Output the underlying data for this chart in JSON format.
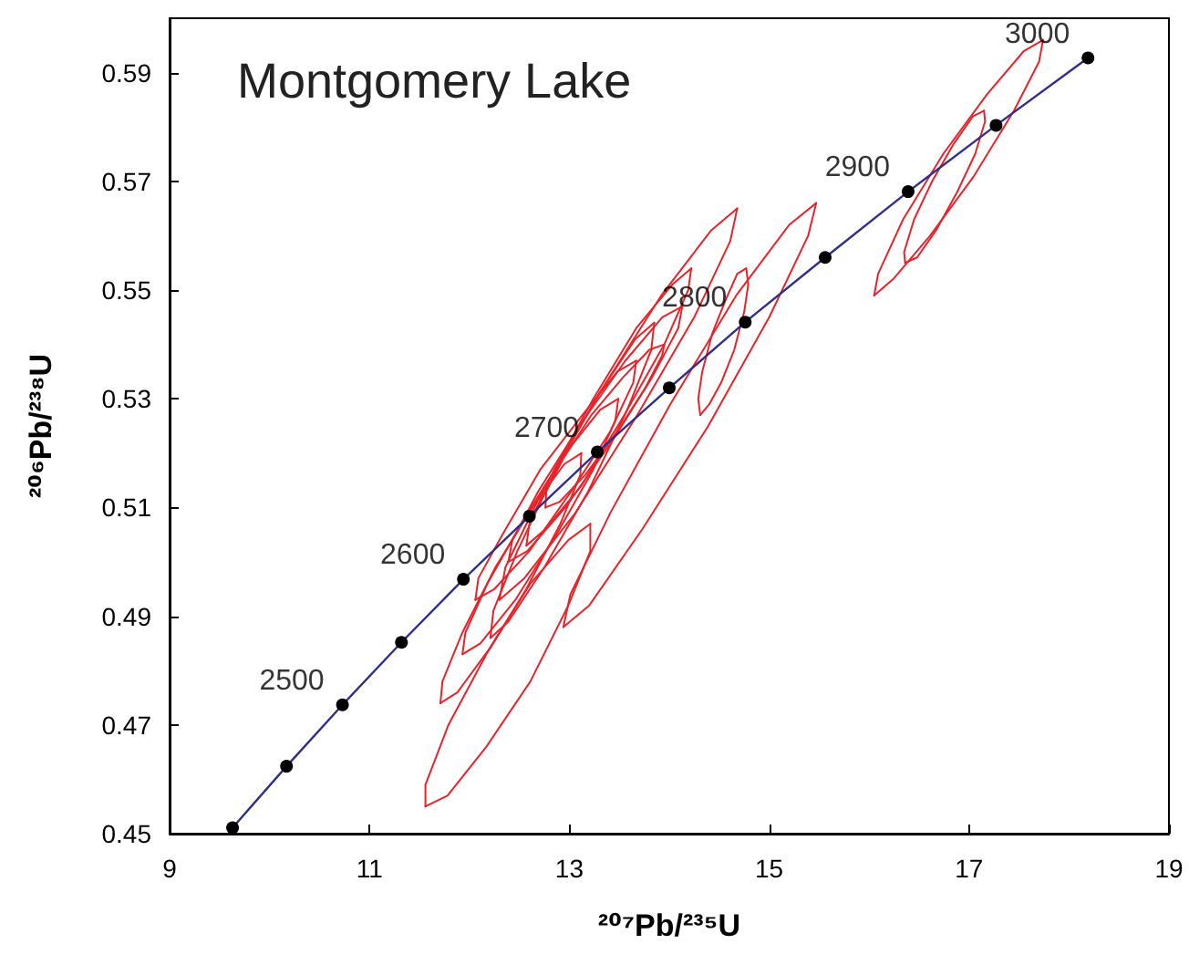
{
  "chart_data": {
    "type": "line",
    "title": "Montgomery Lake",
    "xlabel": "²⁰⁷Pb/²³⁵U",
    "ylabel": "²⁰⁶Pb/²³⁸U",
    "xlim": [
      9,
      19
    ],
    "xticks": [
      9,
      11,
      13,
      15,
      17,
      19
    ],
    "ylim": [
      0.45,
      0.6
    ],
    "yticks": [
      0.45,
      0.47,
      0.49,
      0.51,
      0.53,
      0.55,
      0.57,
      0.59
    ],
    "grid": false,
    "marker": "circle",
    "line_style": "solid",
    "series": [
      {
        "color": "#2e2e8c",
        "x": [
          9.63,
          10.17,
          10.73,
          11.32,
          11.94,
          12.6,
          13.28,
          14.0,
          14.76,
          15.56,
          16.39,
          17.27,
          18.19
        ],
        "values": [
          0.4511,
          0.4624,
          0.4737,
          0.4852,
          0.4968,
          0.5084,
          0.5202,
          0.532,
          0.5441,
          0.556,
          0.5681,
          0.5803,
          0.5927
        ]
      },
      {
        "color": "#e8232a",
        "marker": "none",
        "x": [
          11.56,
          11.78,
          12.17,
          12.61,
          12.99,
          13.21,
          13.21
        ],
        "values": [
          0.455,
          0.457,
          0.466,
          0.478,
          0.492,
          0.502,
          0.507
        ]
      },
      {
        "color": "#e8232a",
        "marker": "none",
        "x": [
          11.56,
          11.56,
          11.79,
          12.17,
          12.61,
          12.99,
          13.21
        ],
        "values": [
          0.455,
          0.459,
          0.47,
          0.483,
          0.496,
          0.504,
          0.507
        ]
      },
      {
        "color": "#e8232a",
        "marker": "none",
        "x": [
          11.71,
          11.88,
          12.2,
          12.57,
          12.91,
          13.11,
          13.12
        ],
        "values": [
          0.474,
          0.476,
          0.484,
          0.495,
          0.507,
          0.516,
          0.52
        ]
      },
      {
        "color": "#e8232a",
        "marker": "none",
        "x": [
          11.71,
          11.73,
          11.93,
          12.26,
          12.63,
          12.95,
          13.12
        ],
        "values": [
          0.474,
          0.478,
          0.487,
          0.499,
          0.51,
          0.518,
          0.52
        ]
      },
      {
        "color": "#e8232a",
        "marker": "none",
        "x": [
          12.3,
          12.55,
          13.06,
          13.68,
          14.25,
          14.61,
          14.68
        ],
        "values": [
          0.493,
          0.497,
          0.509,
          0.527,
          0.545,
          0.559,
          0.565
        ]
      },
      {
        "color": "#e8232a",
        "marker": "none",
        "x": [
          12.3,
          12.36,
          12.73,
          13.3,
          13.92,
          14.42,
          14.68
        ],
        "values": [
          0.493,
          0.499,
          0.513,
          0.531,
          0.549,
          0.561,
          0.565
        ]
      },
      {
        "color": "#e8232a",
        "marker": "none",
        "x": [
          12.94,
          13.2,
          13.73,
          14.39,
          15.0,
          15.39,
          15.47
        ],
        "values": [
          0.488,
          0.492,
          0.506,
          0.525,
          0.545,
          0.56,
          0.566
        ]
      },
      {
        "color": "#e8232a",
        "marker": "none",
        "x": [
          12.94,
          13.01,
          13.41,
          14.01,
          14.67,
          15.2,
          15.47
        ],
        "values": [
          0.488,
          0.494,
          0.509,
          0.529,
          0.549,
          0.562,
          0.566
        ]
      },
      {
        "color": "#e8232a",
        "marker": "none",
        "x": [
          14.31,
          14.4,
          14.52,
          14.65,
          14.75,
          14.79,
          14.77
        ],
        "values": [
          0.527,
          0.529,
          0.533,
          0.539,
          0.546,
          0.551,
          0.554
        ]
      },
      {
        "color": "#e8232a",
        "marker": "none",
        "x": [
          14.31,
          14.29,
          14.33,
          14.43,
          14.56,
          14.68,
          14.77
        ],
        "values": [
          0.527,
          0.53,
          0.535,
          0.542,
          0.548,
          0.553,
          0.554
        ]
      },
      {
        "color": "#e8232a",
        "marker": "none",
        "x": [
          16.05,
          16.24,
          16.61,
          17.05,
          17.45,
          17.7,
          17.74
        ],
        "values": [
          0.549,
          0.552,
          0.56,
          0.571,
          0.583,
          0.592,
          0.596
        ]
      },
      {
        "color": "#e8232a",
        "marker": "none",
        "x": [
          16.05,
          16.09,
          16.34,
          16.74,
          17.18,
          17.55,
          17.74
        ],
        "values": [
          0.549,
          0.553,
          0.563,
          0.575,
          0.586,
          0.594,
          0.596
        ]
      },
      {
        "color": "#e8232a",
        "marker": "none",
        "x": [
          16.36,
          16.48,
          16.67,
          16.88,
          17.06,
          17.16,
          17.15
        ],
        "values": [
          0.555,
          0.556,
          0.561,
          0.568,
          0.575,
          0.581,
          0.583
        ]
      },
      {
        "color": "#e8232a",
        "marker": "none",
        "x": [
          16.36,
          16.35,
          16.45,
          16.63,
          16.85,
          17.04,
          17.15
        ],
        "values": [
          0.555,
          0.557,
          0.563,
          0.57,
          0.577,
          0.582,
          0.583
        ]
      },
      {
        "color": "#e8232a",
        "marker": "none",
        "x": [
          12.06,
          12.25,
          12.6,
          13.02,
          13.41,
          13.64,
          13.67
        ],
        "values": [
          0.493,
          0.495,
          0.502,
          0.513,
          0.524,
          0.533,
          0.537
        ]
      },
      {
        "color": "#e8232a",
        "marker": "none",
        "x": [
          12.06,
          12.09,
          12.33,
          12.71,
          13.13,
          13.48,
          13.67
        ],
        "values": [
          0.493,
          0.497,
          0.505,
          0.517,
          0.527,
          0.535,
          0.537
        ]
      },
      {
        "color": "#e8232a",
        "marker": "none",
        "x": [
          12.21,
          12.39,
          12.75,
          13.19,
          13.58,
          13.82,
          13.85
        ],
        "values": [
          0.486,
          0.489,
          0.499,
          0.513,
          0.528,
          0.539,
          0.544
        ]
      },
      {
        "color": "#e8232a",
        "marker": "none",
        "x": [
          12.21,
          12.24,
          12.48,
          12.87,
          13.3,
          13.66,
          13.85
        ],
        "values": [
          0.486,
          0.491,
          0.502,
          0.517,
          0.531,
          0.541,
          0.544
        ]
      },
      {
        "color": "#e8232a",
        "marker": "none",
        "x": [
          12.39,
          12.58,
          12.96,
          13.42,
          13.83,
          14.09,
          14.13
        ],
        "values": [
          0.5,
          0.502,
          0.51,
          0.522,
          0.534,
          0.543,
          0.547
        ]
      },
      {
        "color": "#e8232a",
        "marker": "none",
        "x": [
          12.39,
          12.43,
          12.69,
          13.1,
          13.56,
          13.93,
          14.13
        ],
        "values": [
          0.5,
          0.504,
          0.513,
          0.525,
          0.537,
          0.545,
          0.547
        ]
      },
      {
        "color": "#e8232a",
        "marker": "none",
        "x": [
          11.93,
          12.11,
          12.46,
          12.87,
          13.24,
          13.46,
          13.49
        ],
        "values": [
          0.483,
          0.485,
          0.493,
          0.505,
          0.517,
          0.526,
          0.53
        ]
      },
      {
        "color": "#e8232a",
        "marker": "none",
        "x": [
          11.93,
          11.96,
          12.18,
          12.55,
          12.96,
          13.31,
          13.49
        ],
        "values": [
          0.483,
          0.487,
          0.496,
          0.508,
          0.52,
          0.528,
          0.53
        ]
      },
      {
        "color": "#e8232a",
        "marker": "none",
        "x": [
          12.57,
          12.76,
          13.12,
          13.55,
          13.95,
          14.19,
          14.22
        ],
        "values": [
          0.503,
          0.506,
          0.514,
          0.527,
          0.54,
          0.55,
          0.554
        ]
      },
      {
        "color": "#e8232a",
        "marker": "none",
        "x": [
          12.57,
          12.6,
          12.85,
          13.24,
          13.67,
          14.03,
          14.22
        ],
        "values": [
          0.503,
          0.507,
          0.517,
          0.53,
          0.543,
          0.551,
          0.554
        ]
      },
      {
        "color": "#e8232a",
        "marker": "none",
        "x": [
          12.76,
          12.9,
          13.16,
          13.48,
          13.76,
          13.93,
          13.95
        ],
        "values": [
          0.51,
          0.511,
          0.516,
          0.524,
          0.532,
          0.538,
          0.54
        ]
      },
      {
        "color": "#e8232a",
        "marker": "none",
        "x": [
          12.76,
          12.77,
          12.94,
          13.22,
          13.54,
          13.8,
          13.95
        ],
        "values": [
          0.51,
          0.513,
          0.519,
          0.527,
          0.534,
          0.539,
          0.54
        ]
      }
    ],
    "annotations": [
      {
        "text": "2500",
        "x": 10.73,
        "y": 0.4737
      },
      {
        "text": "2600",
        "x": 11.94,
        "y": 0.4968
      },
      {
        "text": "2700",
        "x": 13.28,
        "y": 0.5202
      },
      {
        "text": "2800",
        "x": 14.76,
        "y": 0.5441
      },
      {
        "text": "2900",
        "x": 16.39,
        "y": 0.5681
      },
      {
        "text": "3000",
        "x": 18.19,
        "y": 0.5927
      }
    ]
  }
}
